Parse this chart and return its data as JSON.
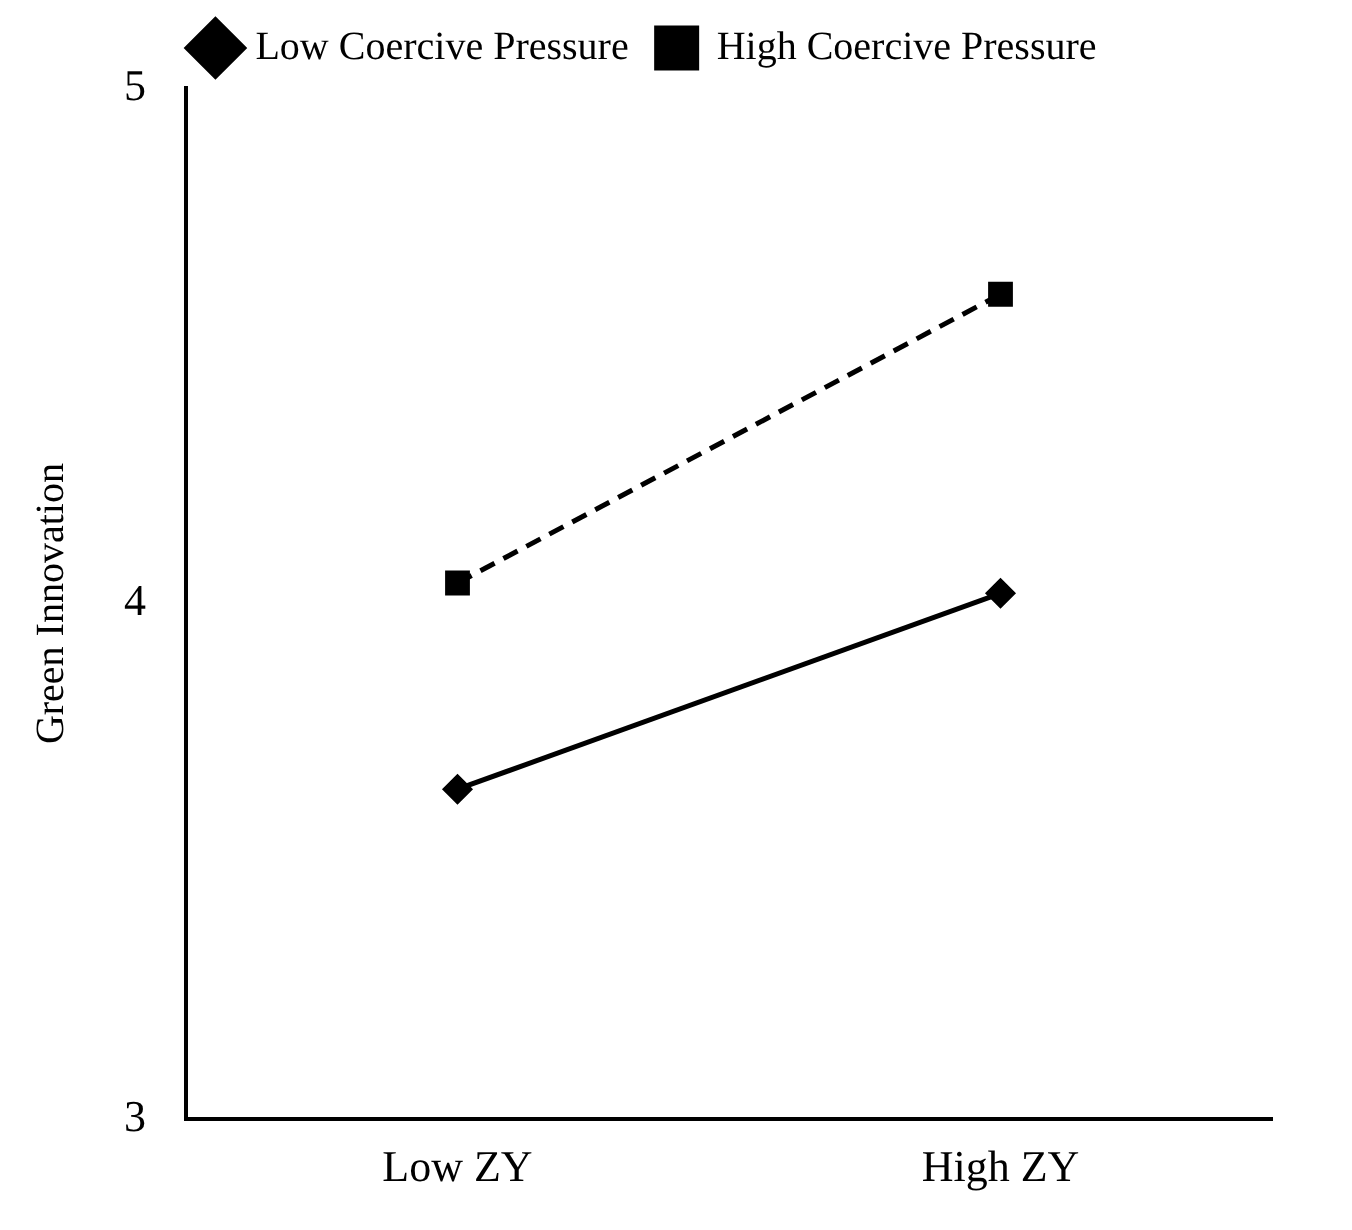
{
  "chart_data": {
    "type": "line",
    "ylabel": "Green Innovation",
    "categories": [
      "Low ZY",
      "High ZY"
    ],
    "series": [
      {
        "name": "Low Coercive Pressure",
        "color": "#000000",
        "values": [
          3.64,
          4.02
        ],
        "marker": "diamond",
        "line_style": "solid"
      },
      {
        "name": "High Coercive Pressure",
        "color": "#000000",
        "values": [
          4.04,
          4.6
        ],
        "marker": "square",
        "line_style": "dashed"
      }
    ],
    "ylim": [
      3,
      5
    ],
    "yticks": [
      3,
      4,
      5
    ],
    "grid": false,
    "legend": "top"
  }
}
